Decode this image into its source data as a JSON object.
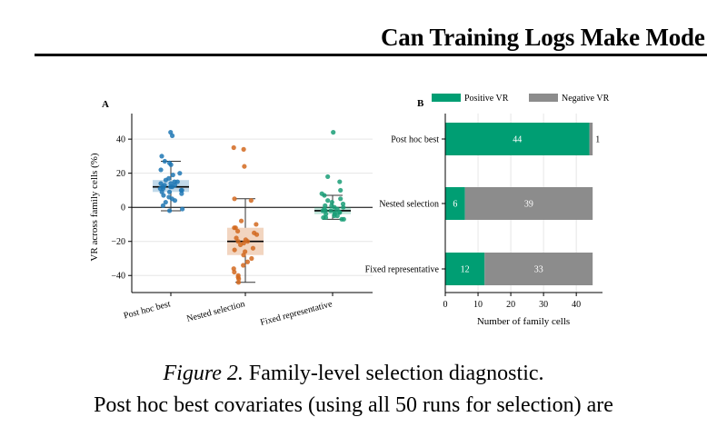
{
  "header": {
    "running_title": "Can Training Logs Make Mode"
  },
  "caption": {
    "label": "Figure 2.",
    "title": "Family-level selection diagnostic.",
    "body_line": "Post hoc best covariates (using all 50 runs for selection) are"
  },
  "chart_data": [
    {
      "panel": "A",
      "type": "scatter",
      "subtype": "box-and-strip",
      "ylabel": "VR across family cells (%)",
      "xlabel": "",
      "ylim": [
        -50,
        55
      ],
      "yticks": [
        -40,
        -20,
        0,
        20,
        40
      ],
      "ytick_labels": [
        "−40",
        "−20",
        "0",
        "20",
        "40"
      ],
      "grid": true,
      "reference_line": 0,
      "categories": [
        "Post hoc best",
        "Nested selection",
        "Fixed representative"
      ],
      "colors": {
        "Post hoc best": "#1f77b4",
        "Nested selection": "#d2691e",
        "Fixed representative": "#1a9e77"
      },
      "series": [
        {
          "category": "Post hoc best",
          "box": {
            "q1": 9,
            "median": 12,
            "q3": 16,
            "whisker_low": -2,
            "whisker_high": 27
          },
          "points": [
            44,
            42,
            30,
            27,
            26,
            25,
            22,
            20,
            19,
            17,
            16,
            15,
            15,
            14,
            14,
            13,
            13,
            12,
            12,
            12,
            11,
            11,
            10,
            10,
            9,
            9,
            8,
            7,
            6,
            5,
            4,
            3,
            1,
            -1,
            -2
          ]
        },
        {
          "category": "Nested selection",
          "box": {
            "q1": -28,
            "median": -20,
            "q3": -12,
            "whisker_low": -44,
            "whisker_high": 5
          },
          "points": [
            35,
            34,
            24,
            5,
            4,
            -8,
            -10,
            -12,
            -12,
            -14,
            -15,
            -16,
            -18,
            -19,
            -20,
            -20,
            -21,
            -22,
            -24,
            -25,
            -26,
            -28,
            -30,
            -32,
            -34,
            -36,
            -38,
            -40,
            -41,
            -42,
            -44
          ]
        },
        {
          "category": "Fixed representative",
          "box": {
            "q1": -4,
            "median": -2,
            "q3": 0,
            "whisker_low": -7,
            "whisker_high": 7
          },
          "points": [
            44,
            18,
            15,
            10,
            8,
            7,
            5,
            4,
            3,
            2,
            1,
            1,
            0,
            0,
            -1,
            -1,
            -2,
            -2,
            -2,
            -3,
            -3,
            -3,
            -4,
            -4,
            -5,
            -5,
            -6,
            -6,
            -7,
            -7
          ]
        }
      ]
    },
    {
      "panel": "B",
      "type": "bar",
      "orientation": "horizontal",
      "stacked": true,
      "categories": [
        "Post hoc best",
        "Nested selection",
        "Fixed representative"
      ],
      "series": [
        {
          "name": "Positive VR",
          "values": [
            44,
            6,
            12
          ],
          "color": "#009e73"
        },
        {
          "name": "Negative VR",
          "values": [
            1,
            39,
            33
          ],
          "color": "#8c8c8c"
        }
      ],
      "xlabel": "Number of family cells",
      "ylabel": "",
      "xlim": [
        0,
        48
      ],
      "xticks": [
        0,
        10,
        20,
        30,
        40
      ],
      "grid": true,
      "legend_position": "top"
    }
  ]
}
